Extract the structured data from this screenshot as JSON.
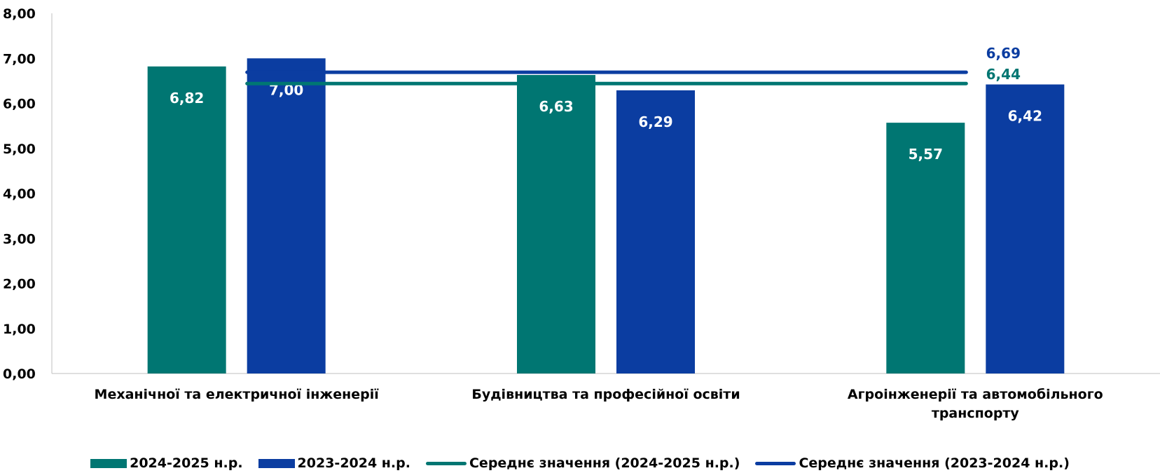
{
  "chart_data": {
    "type": "bar",
    "categories": [
      [
        "Механічної та електричної інженерії"
      ],
      [
        "Будівництва та професійної освіти"
      ],
      [
        "Агроінженерії та автомобільного",
        "транспорту"
      ]
    ],
    "series": [
      {
        "name": "2024-2025 н.р.",
        "values": [
          6.82,
          6.63,
          5.57
        ],
        "labels": [
          "6,82",
          "6,63",
          "5,57"
        ],
        "color": "#007672"
      },
      {
        "name": "2023-2024 н.р.",
        "values": [
          7.0,
          6.29,
          6.42
        ],
        "labels": [
          "7,00",
          "6,29",
          "6,42"
        ],
        "color": "#0b3da1"
      }
    ],
    "averages": [
      {
        "name": "Середнє значення (2024-2025 н.р.)",
        "value": 6.44,
        "label": "6,44",
        "color": "#007672"
      },
      {
        "name": "Середнє значення (2023-2024 н.р.)",
        "value": 6.69,
        "label": "6,69",
        "color": "#0b3da1"
      }
    ],
    "ylim": [
      0,
      8
    ],
    "yticks": [
      "0,00",
      "1,00",
      "2,00",
      "3,00",
      "4,00",
      "5,00",
      "6,00",
      "7,00",
      "8,00"
    ],
    "xlabel": "",
    "ylabel": "",
    "title": "",
    "grid": false,
    "legend_position": "bottom"
  }
}
